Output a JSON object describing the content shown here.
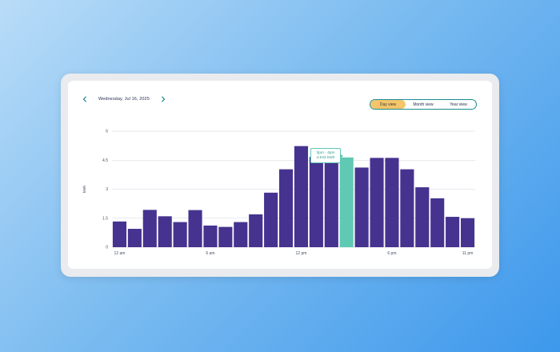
{
  "header": {
    "date": "Wednesday, Jul 16, 2025",
    "prev_icon": "chevron-left-icon",
    "next_icon": "chevron-right-icon"
  },
  "view_toggle": {
    "options": [
      "Day view",
      "Month view",
      "Year view"
    ],
    "active": "Day view"
  },
  "tooltip": {
    "range": "3pm - 4pm",
    "value": "4.643 kWh"
  },
  "colors": {
    "bar": "#46338f",
    "bar_highlight": "#5fc9b3",
    "toggle_active": "#f4c56a",
    "accent": "#1c8a8f",
    "grid": "#cfd5dd"
  },
  "chart_data": {
    "type": "bar",
    "ylabel": "kWh",
    "ylim": [
      0,
      6
    ],
    "yticks": [
      "0",
      "1.5",
      "3",
      "4.5",
      "6"
    ],
    "xticks": [
      {
        "index": 0,
        "label": "12 am"
      },
      {
        "index": 6,
        "label": "6 am"
      },
      {
        "index": 12,
        "label": "12 pm"
      },
      {
        "index": 18,
        "label": "6 pm"
      },
      {
        "index": 23,
        "label": "11 pm"
      }
    ],
    "values": [
      1.33,
      0.95,
      1.93,
      1.6,
      1.3,
      1.92,
      1.12,
      1.05,
      1.3,
      1.7,
      2.82,
      4.03,
      5.23,
      4.67,
      5.13,
      4.643,
      4.12,
      4.62,
      4.62,
      4.03,
      3.1,
      2.53,
      1.57,
      1.5
    ],
    "highlight_index": 15,
    "grid": true
  }
}
